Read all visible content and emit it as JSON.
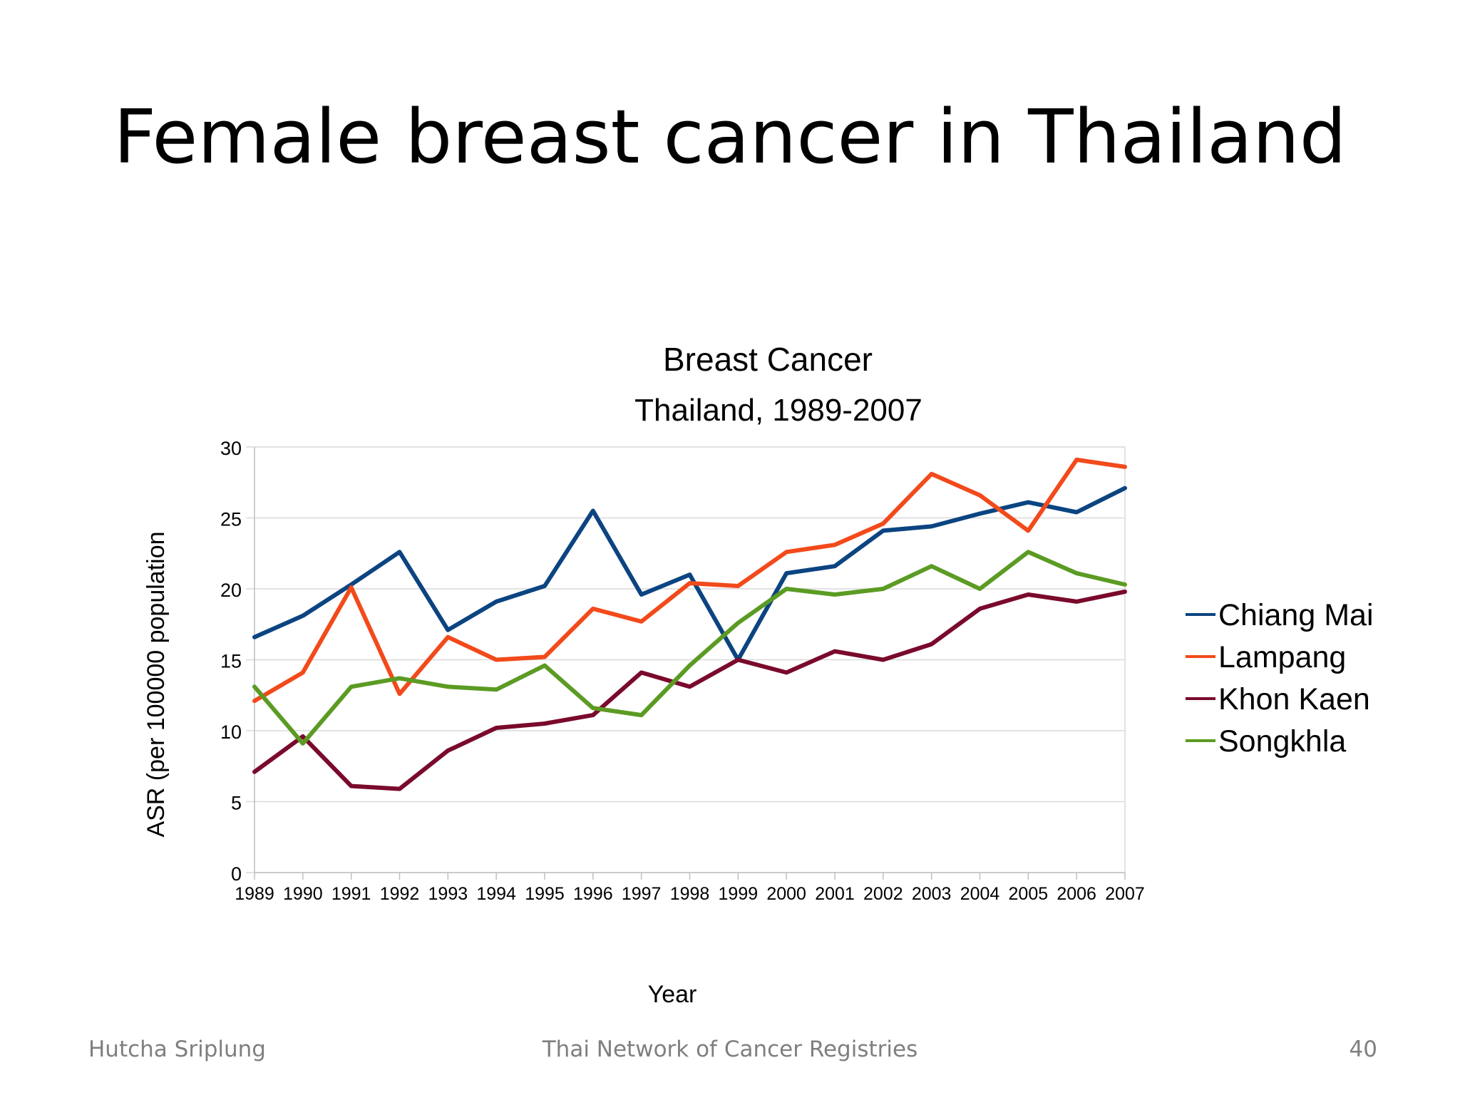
{
  "slide": {
    "title": "Female breast cancer in Thailand",
    "footer_left": "Hutcha Sriplung",
    "footer_center": "Thai Network of Cancer Registries",
    "page_number": "40"
  },
  "chart_data": {
    "type": "line",
    "title": "Breast Cancer",
    "subtitle": "Thailand, 1989-2007",
    "xlabel": "Year",
    "ylabel": "ASR (per 100000 population",
    "ylim": [
      0,
      30
    ],
    "yticks": [
      0,
      5,
      10,
      15,
      20,
      25,
      30
    ],
    "grid": true,
    "legend": "right",
    "x": [
      "1989",
      "1990",
      "1991",
      "1992",
      "1993",
      "1994",
      "1995",
      "1996",
      "1997",
      "1998",
      "1999",
      "2000",
      "2001",
      "2002",
      "2003",
      "2004",
      "2005",
      "2006",
      "2007"
    ],
    "series": [
      {
        "name": "Chiang Mai",
        "color": "#0b4481",
        "values": [
          16.6,
          18.1,
          20.3,
          22.6,
          17.1,
          19.1,
          20.2,
          25.5,
          19.6,
          21.0,
          15.0,
          21.1,
          21.6,
          24.1,
          24.4,
          25.3,
          26.1,
          25.4,
          27.1
        ]
      },
      {
        "name": "Lampang",
        "color": "#f24a1b",
        "values": [
          12.1,
          14.1,
          20.1,
          12.6,
          16.6,
          15.0,
          15.2,
          18.6,
          17.7,
          20.4,
          20.2,
          22.6,
          23.1,
          24.6,
          28.1,
          26.6,
          24.1,
          29.1,
          28.6
        ]
      },
      {
        "name": "Khon Kaen",
        "color": "#7a0a2c",
        "values": [
          7.1,
          9.6,
          6.1,
          5.9,
          8.6,
          10.2,
          10.5,
          11.1,
          14.1,
          13.1,
          15.0,
          14.1,
          15.6,
          15.0,
          16.1,
          18.6,
          19.6,
          19.1,
          19.8
        ]
      },
      {
        "name": "Songkhla",
        "color": "#5b9b23",
        "values": [
          13.1,
          9.1,
          13.1,
          13.7,
          13.1,
          12.9,
          14.6,
          11.6,
          11.1,
          14.6,
          17.6,
          20.0,
          19.6,
          20.0,
          21.6,
          20.0,
          22.6,
          21.1,
          20.3
        ]
      }
    ]
  }
}
